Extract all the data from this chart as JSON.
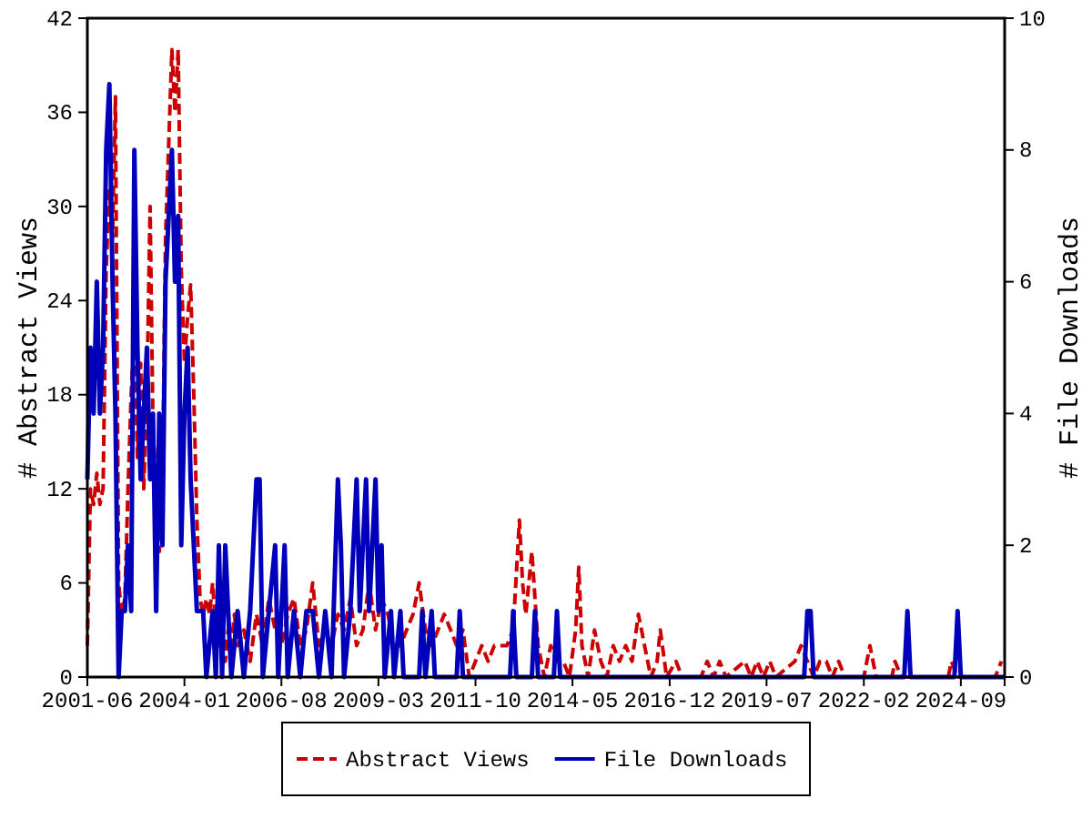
{
  "chart_data": {
    "type": "line",
    "ylabel": "# Abstract Views",
    "y2label": "# File Downloads",
    "xlim": [
      "2001-06",
      "2025-11"
    ],
    "xticks": [
      "2001-06",
      "2004-01",
      "2006-08",
      "2009-03",
      "2011-10",
      "2014-05",
      "2016-12",
      "2019-07",
      "2022-02",
      "2024-09"
    ],
    "ylim": [
      0,
      42
    ],
    "yticks": [
      0,
      6,
      12,
      18,
      24,
      30,
      36,
      42
    ],
    "y2lim": [
      0,
      10
    ],
    "y2ticks": [
      0,
      2,
      4,
      6,
      8,
      10
    ],
    "grid": false,
    "legend": "bottom",
    "marker": "none",
    "series": [
      {
        "name": "Abstract Views",
        "color": "#cc0000",
        "line_style": "dashed",
        "axis": "y",
        "x": [
          "2001-06",
          "2001-07",
          "2001-08",
          "2001-09",
          "2001-10",
          "2001-11",
          "2001-12",
          "2002-01",
          "2002-02",
          "2002-03",
          "2002-04",
          "2002-05",
          "2002-06",
          "2002-07",
          "2002-08",
          "2002-09",
          "2002-10",
          "2002-11",
          "2002-12",
          "2003-01",
          "2003-02",
          "2003-03",
          "2003-04",
          "2003-05",
          "2003-06",
          "2003-07",
          "2003-08",
          "2003-09",
          "2003-10",
          "2003-11",
          "2003-12",
          "2004-01",
          "2004-02",
          "2004-03",
          "2004-04",
          "2004-05",
          "2004-06",
          "2004-07",
          "2004-08",
          "2004-09",
          "2004-10",
          "2004-11",
          "2004-12",
          "2005-01",
          "2005-02",
          "2005-03",
          "2005-04",
          "2005-05",
          "2005-06",
          "2005-08",
          "2005-10",
          "2005-12",
          "2006-02",
          "2006-04",
          "2006-06",
          "2006-08",
          "2006-10",
          "2006-12",
          "2007-02",
          "2007-04",
          "2007-06",
          "2007-08",
          "2007-10",
          "2007-12",
          "2008-02",
          "2008-04",
          "2008-06",
          "2008-08",
          "2008-10",
          "2008-12",
          "2009-02",
          "2009-04",
          "2009-06",
          "2009-08",
          "2009-10",
          "2009-12",
          "2010-02",
          "2010-04",
          "2010-06",
          "2010-08",
          "2010-10",
          "2010-12",
          "2011-02",
          "2011-04",
          "2011-06",
          "2011-08",
          "2011-10",
          "2011-12",
          "2012-02",
          "2012-04",
          "2012-06",
          "2012-08",
          "2012-10",
          "2012-12",
          "2013-01",
          "2013-02",
          "2013-04",
          "2013-06",
          "2013-08",
          "2013-10",
          "2013-12",
          "2014-02",
          "2014-04",
          "2014-06",
          "2014-07",
          "2014-08",
          "2014-10",
          "2014-12",
          "2015-02",
          "2015-04",
          "2015-06",
          "2015-08",
          "2015-10",
          "2015-12",
          "2016-02",
          "2016-04",
          "2016-06",
          "2016-08",
          "2016-09",
          "2016-11",
          "2017-02",
          "2017-04",
          "2017-10",
          "2017-12",
          "2018-02",
          "2018-04",
          "2018-06",
          "2018-12",
          "2019-02",
          "2019-04",
          "2019-06",
          "2019-08",
          "2019-10",
          "2020-04",
          "2020-06",
          "2020-08",
          "2020-10",
          "2020-12",
          "2021-02",
          "2021-04",
          "2021-06",
          "2021-08",
          "2022-02",
          "2022-04",
          "2022-06",
          "2022-11",
          "2022-12",
          "2023-02",
          "2024-05",
          "2024-06",
          "2024-08",
          "2025-08",
          "2025-10"
        ],
        "values": [
          2,
          12,
          11,
          13,
          11,
          12,
          26,
          31,
          28,
          37,
          6,
          4,
          5,
          12,
          18,
          22,
          14,
          20,
          12,
          18,
          30,
          16,
          12,
          8,
          12,
          28,
          34,
          40,
          36,
          40,
          26,
          20,
          23,
          25,
          18,
          10,
          5,
          4,
          5,
          4,
          6,
          3,
          2,
          4,
          1,
          3,
          2,
          4,
          2,
          3,
          1,
          4,
          2,
          5,
          3,
          2,
          4,
          5,
          2,
          3,
          6,
          2,
          3,
          2,
          4,
          3,
          5,
          2,
          3,
          6,
          3,
          5,
          4,
          2,
          2,
          3,
          4,
          6,
          3,
          2,
          3,
          4,
          3,
          2,
          3,
          0,
          1,
          2,
          1,
          2,
          2,
          2,
          3,
          10,
          6,
          4,
          8,
          2,
          0,
          2,
          1,
          1,
          0,
          3,
          7,
          2,
          0,
          3,
          1,
          0,
          2,
          1,
          2,
          1,
          4,
          2,
          0,
          1,
          3,
          0,
          1,
          0,
          0,
          1,
          0,
          1,
          0,
          1,
          0,
          1,
          0,
          1,
          0,
          1,
          2,
          1,
          0,
          1,
          1,
          0,
          1,
          0,
          0,
          2,
          0,
          0,
          1,
          0,
          0,
          1,
          0,
          0,
          1
        ]
      },
      {
        "name": "File Downloads",
        "color": "#0000bb",
        "line_style": "solid",
        "axis": "y2",
        "x": [
          "2001-06",
          "2001-07",
          "2001-08",
          "2001-09",
          "2001-10",
          "2001-11",
          "2001-12",
          "2002-01",
          "2002-02",
          "2002-03",
          "2002-04",
          "2002-05",
          "2002-06",
          "2002-07",
          "2002-08",
          "2002-09",
          "2002-10",
          "2002-11",
          "2002-12",
          "2003-01",
          "2003-02",
          "2003-03",
          "2003-04",
          "2003-05",
          "2003-06",
          "2003-07",
          "2003-08",
          "2003-09",
          "2003-10",
          "2003-11",
          "2003-12",
          "2004-01",
          "2004-02",
          "2004-03",
          "2004-04",
          "2004-05",
          "2004-06",
          "2004-07",
          "2004-08",
          "2004-10",
          "2004-11",
          "2004-12",
          "2005-01",
          "2005-02",
          "2005-03",
          "2005-04",
          "2005-06",
          "2005-08",
          "2005-10",
          "2005-12",
          "2006-01",
          "2006-02",
          "2006-04",
          "2006-06",
          "2006-07",
          "2006-09",
          "2006-10",
          "2006-12",
          "2007-02",
          "2007-04",
          "2007-06",
          "2007-08",
          "2007-10",
          "2007-12",
          "2008-02",
          "2008-03",
          "2008-04",
          "2008-06",
          "2008-08",
          "2008-09",
          "2008-10",
          "2008-11",
          "2008-12",
          "2009-01",
          "2009-02",
          "2009-03",
          "2009-04",
          "2009-05",
          "2009-07",
          "2009-08",
          "2009-10",
          "2009-11",
          "2010-04",
          "2010-05",
          "2010-06",
          "2010-08",
          "2010-09",
          "2011-04",
          "2011-05",
          "2011-06",
          "2012-09",
          "2012-10",
          "2012-11",
          "2013-04",
          "2013-05",
          "2013-06",
          "2013-11",
          "2013-12",
          "2014-01",
          "2020-07",
          "2020-08",
          "2020-09",
          "2020-10",
          "2023-03",
          "2023-04",
          "2023-05",
          "2024-07",
          "2024-08",
          "2024-09",
          "2025-11"
        ],
        "values": [
          3,
          5,
          4,
          6,
          4,
          5,
          8,
          9,
          6,
          4,
          0,
          1,
          1,
          2,
          1,
          8,
          5,
          3,
          4,
          5,
          3,
          4,
          1,
          4,
          2,
          6,
          7,
          8,
          6,
          7,
          2,
          4,
          5,
          3,
          2,
          1,
          1,
          1,
          0,
          1,
          0,
          2,
          0,
          2,
          1,
          0,
          1,
          0,
          1,
          3,
          3,
          0,
          1,
          2,
          0,
          2,
          0,
          1,
          0,
          1,
          1,
          0,
          1,
          0,
          3,
          2,
          0,
          1,
          3,
          1,
          2,
          3,
          1,
          2,
          3,
          1,
          2,
          0,
          1,
          0,
          1,
          0,
          0,
          1,
          0,
          1,
          0,
          0,
          1,
          0,
          0,
          1,
          0,
          0,
          1,
          0,
          0,
          1,
          0,
          0,
          1,
          1,
          0,
          0,
          1,
          0,
          0,
          1,
          0,
          0
        ]
      }
    ]
  }
}
